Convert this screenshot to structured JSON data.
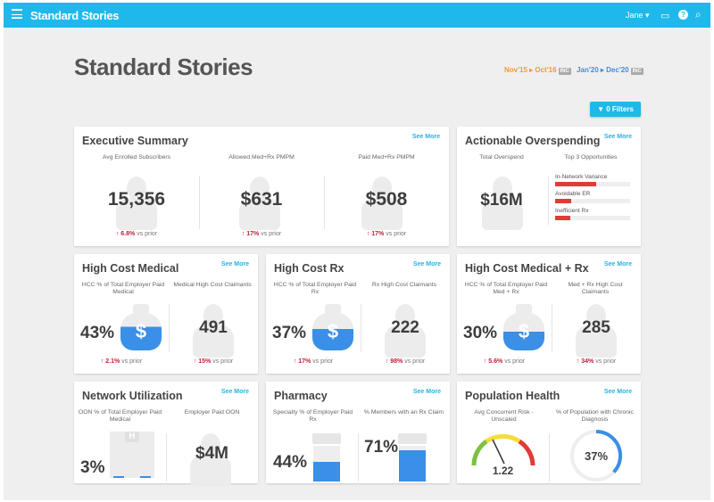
{
  "header": {
    "app_title": "Standard Stories",
    "user": "Jane ▾",
    "icons": [
      "menu-icon",
      "inbox-icon",
      "help-icon",
      "search-icon"
    ]
  },
  "page": {
    "title": "Standard Stories",
    "date_range_1": "Nov'15 ▸ Oct'16",
    "date_range_2": "Jan'20 ▸ Dec'20",
    "badge": "INC",
    "filters": "0 Filters"
  },
  "colors": {
    "brand": "#1fb8ea",
    "fill_blue": "#3a8fe6",
    "up_red": "#c0203a",
    "bar_red": "#e13b35"
  },
  "see_more": "See More",
  "exec": {
    "title": "Executive Summary",
    "metrics": [
      {
        "label": "Avg Enrolled Subscribers",
        "value": "15,356",
        "change": "6.8%",
        "suffix": "vs prior"
      },
      {
        "label": "Allowed Med+Rx PMPM",
        "value": "$631",
        "change": "17%",
        "suffix": "vs prior"
      },
      {
        "label": "Paid Med+Rx PMPM",
        "value": "$508",
        "change": "17%",
        "suffix": "vs prior"
      }
    ]
  },
  "overspend": {
    "title": "Actionable Overspending",
    "total_label": "Total Overspend",
    "total": "$16M",
    "top_label": "Top 3 Opportunities",
    "items": [
      {
        "label": "In-Network Variance",
        "pct": 55
      },
      {
        "label": "Avoidable ER",
        "pct": 22
      },
      {
        "label": "Inefficient Rx",
        "pct": 20
      }
    ]
  },
  "hcm": {
    "title": "High Cost Medical",
    "l_label": "HCC % of Total Employer Paid Medical",
    "l_value": "43%",
    "l_fill": 43,
    "l_change": "2.1%",
    "r_label": "Medical High Cost Claimants",
    "r_value": "491",
    "r_change": "15%",
    "suffix": "vs prior"
  },
  "hcrx": {
    "title": "High Cost Rx",
    "l_label": "HCC % of Total Employer Paid Rx",
    "l_value": "37%",
    "l_fill": 37,
    "l_change": "17%",
    "r_label": "Rx High Cost Claimants",
    "r_value": "222",
    "r_change": "98%",
    "suffix": "vs prior"
  },
  "hcmrx": {
    "title": "High Cost Medical + Rx",
    "l_label": "HCC % of Total Employer Paid Med + Rx",
    "l_value": "30%",
    "l_fill": 30,
    "l_change": "5.6%",
    "r_label": "Med + Rx High Cost Claimants",
    "r_value": "285",
    "r_change": "34%",
    "suffix": "vs prior"
  },
  "network": {
    "title": "Network Utilization",
    "l_label": "OON % of Total Employer Paid Medical",
    "l_value": "3%",
    "r_label": "Employer Paid OON",
    "r_value": "$4M"
  },
  "pharmacy": {
    "title": "Pharmacy",
    "l_label": "Specialty % of Employer Paid Rx",
    "l_value": "44%",
    "r_label": "% Members with an Rx Claim",
    "r_value": "71%"
  },
  "pophealth": {
    "title": "Population Health",
    "l_label": "Avg Concurrent Risk - Unscaled",
    "l_value": "1.22",
    "r_label": "% of Population with Chronic Diagnosis",
    "r_value": "37%",
    "r_pct": 37
  }
}
